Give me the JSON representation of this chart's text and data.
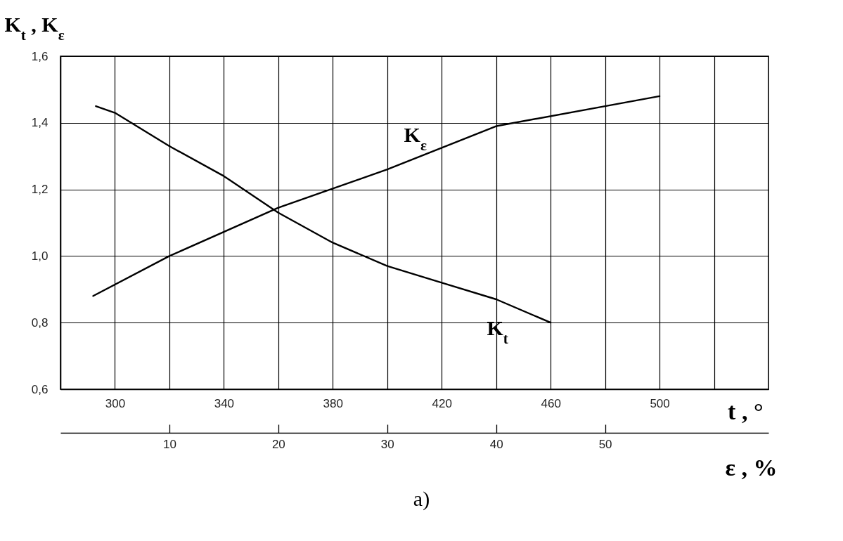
{
  "chart_data": {
    "type": "line",
    "ylabel": "K$_{t}$ , K$_{ε}$",
    "xlabel": "t , °",
    "x2label": "ε , %",
    "xlim": [
      280,
      540
    ],
    "xticks": [
      {
        "value": 300,
        "label": "300"
      },
      {
        "value": 320,
        "label": null
      },
      {
        "value": 340,
        "label": "340"
      },
      {
        "value": 360,
        "label": null
      },
      {
        "value": 380,
        "label": "380"
      },
      {
        "value": 400,
        "label": null
      },
      {
        "value": 420,
        "label": "420"
      },
      {
        "value": 440,
        "label": null
      },
      {
        "value": 460,
        "label": "460"
      },
      {
        "value": 480,
        "label": null
      },
      {
        "value": 500,
        "label": "500"
      },
      {
        "value": 520,
        "label": null
      }
    ],
    "x2lim": [
      0,
      65
    ],
    "x2ticks": [
      10,
      20,
      30,
      40,
      50
    ],
    "ylim": [
      0.6,
      1.6
    ],
    "yticks": [
      {
        "value": 0.6,
        "label": "0,6"
      },
      {
        "value": 0.8,
        "label": "0,8"
      },
      {
        "value": 1.0,
        "label": "1,0"
      },
      {
        "value": 1.2,
        "label": "1,2"
      },
      {
        "value": 1.4,
        "label": "1,4"
      },
      {
        "value": 1.6,
        "label": "1,6"
      }
    ],
    "grid": true,
    "legend": false,
    "marker": "none",
    "line_style": "solid",
    "series": [
      {
        "name": "K$_{t}$",
        "color": "#000000",
        "x": [
          293,
          300,
          320,
          340,
          360,
          380,
          400,
          420,
          440,
          460
        ],
        "values": [
          1.45,
          1.43,
          1.33,
          1.24,
          1.13,
          1.04,
          0.97,
          0.92,
          0.87,
          0.8
        ]
      },
      {
        "name": "K$_{ε}$",
        "color": "#000000",
        "axis": "x2",
        "x": [
          3,
          10,
          20,
          30,
          40,
          50,
          55
        ],
        "values": [
          0.88,
          1.0,
          1.145,
          1.26,
          1.39,
          1.45,
          1.48
        ]
      }
    ],
    "annotations": [
      "a)"
    ]
  }
}
